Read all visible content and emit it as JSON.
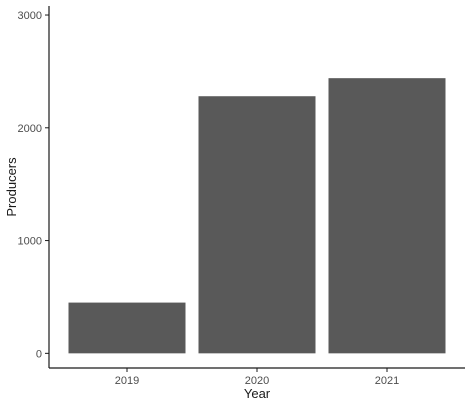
{
  "chart_data": {
    "type": "bar",
    "title": "",
    "xlabel": "Year",
    "ylabel": "Producers",
    "categories": [
      "2019",
      "2020",
      "2021"
    ],
    "values": [
      450,
      2280,
      2440
    ],
    "ylim": [
      -130,
      3080
    ],
    "yticks": [
      0,
      1000,
      2000,
      3000
    ],
    "grid": false,
    "legend": "none",
    "bar_color": "#595959",
    "axis_color": "#1a1a1a"
  }
}
